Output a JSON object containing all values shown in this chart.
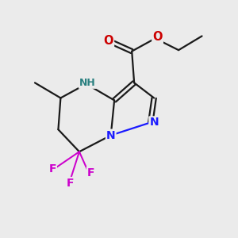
{
  "background_color": "#ebebeb",
  "atom_colors": {
    "N": "#1a1aff",
    "O": "#cc0000",
    "F": "#cc00cc",
    "NH": "#2a8080"
  },
  "bond_color": "#1a1a1a",
  "bond_width": 1.6,
  "figsize": [
    3.0,
    3.0
  ],
  "dpi": 100
}
